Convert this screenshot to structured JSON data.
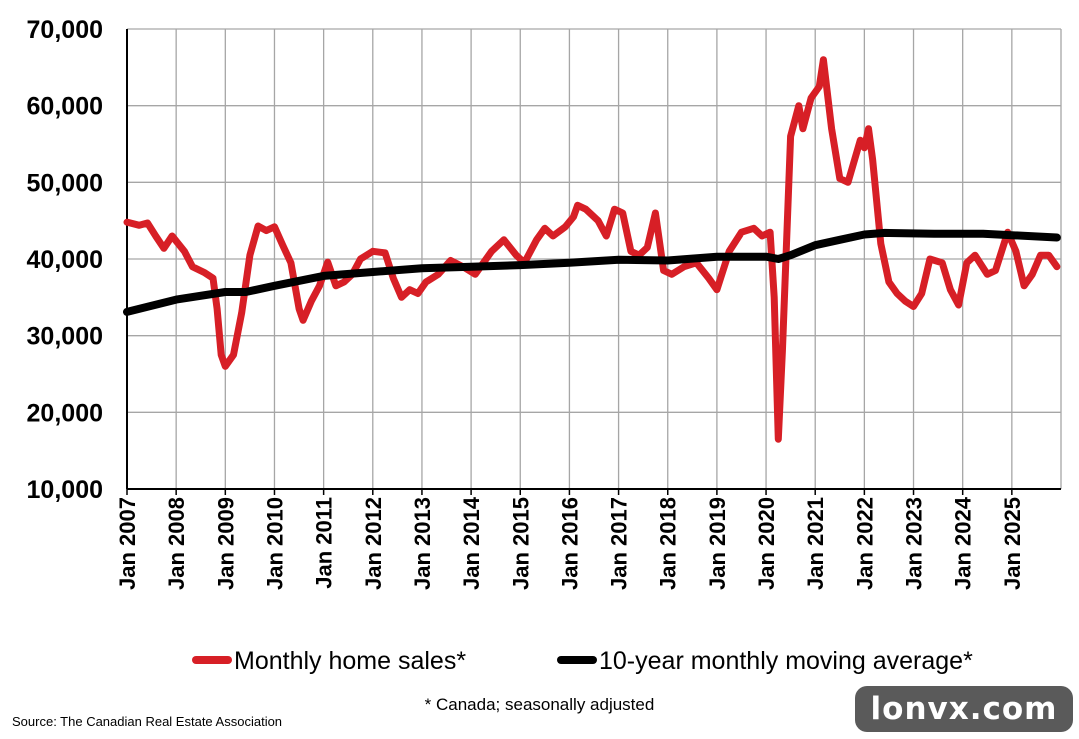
{
  "chart_data": {
    "type": "line",
    "title": "",
    "xlabel": "",
    "ylabel": "",
    "ylim": [
      10000,
      70000
    ],
    "yticks": [
      "10,000",
      "20,000",
      "30,000",
      "40,000",
      "50,000",
      "60,000",
      "70,000"
    ],
    "xticks": [
      "Jan 2007",
      "Jan 2008",
      "Jan 2009",
      "Jan 2010",
      "Jan 2011",
      "Jan 2012",
      "Jan 2013",
      "Jan 2014",
      "Jan 2015",
      "Jan 2016",
      "Jan 2017",
      "Jan 2018",
      "Jan 2019",
      "Jan 2020",
      "Jan 2021",
      "Jan 2022",
      "Jan 2023",
      "Jan 2024",
      "Jan 2025"
    ],
    "x_range": [
      "2007-01",
      "2025-12"
    ],
    "grid": true,
    "legend_position": "bottom",
    "series": [
      {
        "name": "Monthly home sales*",
        "color": "#d71f26",
        "points": [
          [
            "2007-01",
            44800
          ],
          [
            "2007-04",
            44400
          ],
          [
            "2007-06",
            44700
          ],
          [
            "2007-08",
            43000
          ],
          [
            "2007-10",
            41400
          ],
          [
            "2007-12",
            43000
          ],
          [
            "2008-03",
            41000
          ],
          [
            "2008-05",
            39000
          ],
          [
            "2008-08",
            38200
          ],
          [
            "2008-10",
            37500
          ],
          [
            "2008-11",
            33500
          ],
          [
            "2008-12",
            27500
          ],
          [
            "2009-01",
            26000
          ],
          [
            "2009-03",
            27500
          ],
          [
            "2009-05",
            33000
          ],
          [
            "2009-07",
            40500
          ],
          [
            "2009-09",
            44300
          ],
          [
            "2009-11",
            43700
          ],
          [
            "2010-01",
            44200
          ],
          [
            "2010-03",
            41800
          ],
          [
            "2010-05",
            39500
          ],
          [
            "2010-07",
            33500
          ],
          [
            "2010-08",
            32000
          ],
          [
            "2010-10",
            34500
          ],
          [
            "2010-12",
            36500
          ],
          [
            "2011-02",
            39600
          ],
          [
            "2011-04",
            36500
          ],
          [
            "2011-06",
            37000
          ],
          [
            "2011-08",
            38000
          ],
          [
            "2011-10",
            40000
          ],
          [
            "2012-01",
            41000
          ],
          [
            "2012-04",
            40800
          ],
          [
            "2012-06",
            37500
          ],
          [
            "2012-08",
            35000
          ],
          [
            "2012-10",
            36000
          ],
          [
            "2012-12",
            35500
          ],
          [
            "2013-02",
            37000
          ],
          [
            "2013-05",
            38000
          ],
          [
            "2013-08",
            39800
          ],
          [
            "2013-11",
            39000
          ],
          [
            "2014-02",
            38000
          ],
          [
            "2014-04",
            39500
          ],
          [
            "2014-06",
            41000
          ],
          [
            "2014-09",
            42500
          ],
          [
            "2014-12",
            40500
          ],
          [
            "2015-02",
            39500
          ],
          [
            "2015-05",
            42500
          ],
          [
            "2015-07",
            44000
          ],
          [
            "2015-09",
            43000
          ],
          [
            "2015-12",
            44200
          ],
          [
            "2016-02",
            45500
          ],
          [
            "2016-03",
            47000
          ],
          [
            "2016-05",
            46500
          ],
          [
            "2016-08",
            45000
          ],
          [
            "2016-10",
            43000
          ],
          [
            "2016-12",
            46500
          ],
          [
            "2017-02",
            46000
          ],
          [
            "2017-04",
            41000
          ],
          [
            "2017-06",
            40500
          ],
          [
            "2017-08",
            41500
          ],
          [
            "2017-10",
            46000
          ],
          [
            "2017-12",
            38500
          ],
          [
            "2018-02",
            38000
          ],
          [
            "2018-05",
            39000
          ],
          [
            "2018-08",
            39500
          ],
          [
            "2018-11",
            37500
          ],
          [
            "2019-01",
            36000
          ],
          [
            "2019-04",
            41000
          ],
          [
            "2019-07",
            43500
          ],
          [
            "2019-10",
            44000
          ],
          [
            "2019-12",
            43000
          ],
          [
            "2020-02",
            43500
          ],
          [
            "2020-03",
            35000
          ],
          [
            "2020-04",
            16500
          ],
          [
            "2020-05",
            28000
          ],
          [
            "2020-07",
            56000
          ],
          [
            "2020-09",
            60000
          ],
          [
            "2020-10",
            57000
          ],
          [
            "2020-12",
            61000
          ],
          [
            "2021-02",
            62500
          ],
          [
            "2021-03",
            66000
          ],
          [
            "2021-05",
            57000
          ],
          [
            "2021-07",
            50500
          ],
          [
            "2021-09",
            50000
          ],
          [
            "2021-12",
            55500
          ],
          [
            "2022-01",
            54500
          ],
          [
            "2022-02",
            57000
          ],
          [
            "2022-03",
            53000
          ],
          [
            "2022-05",
            42000
          ],
          [
            "2022-07",
            37000
          ],
          [
            "2022-09",
            35500
          ],
          [
            "2022-11",
            34500
          ],
          [
            "2023-01",
            33800
          ],
          [
            "2023-03",
            35500
          ],
          [
            "2023-05",
            40000
          ],
          [
            "2023-08",
            39500
          ],
          [
            "2023-10",
            36000
          ],
          [
            "2023-12",
            34000
          ],
          [
            "2024-02",
            39500
          ],
          [
            "2024-04",
            40500
          ],
          [
            "2024-07",
            38000
          ],
          [
            "2024-09",
            38500
          ],
          [
            "2024-12",
            43500
          ],
          [
            "2025-02",
            41000
          ],
          [
            "2025-04",
            36500
          ],
          [
            "2025-06",
            38000
          ],
          [
            "2025-08",
            40500
          ],
          [
            "2025-10",
            40500
          ],
          [
            "2025-12",
            39000
          ]
        ]
      },
      {
        "name": "10-year monthly moving average*",
        "color": "#000000",
        "points": [
          [
            "2007-01",
            33100
          ],
          [
            "2008-01",
            34700
          ],
          [
            "2009-01",
            35700
          ],
          [
            "2009-06",
            35700
          ],
          [
            "2010-01",
            36500
          ],
          [
            "2011-01",
            37800
          ],
          [
            "2012-01",
            38300
          ],
          [
            "2013-01",
            38800
          ],
          [
            "2014-01",
            39000
          ],
          [
            "2015-01",
            39200
          ],
          [
            "2016-01",
            39500
          ],
          [
            "2017-01",
            39900
          ],
          [
            "2018-01",
            39800
          ],
          [
            "2019-01",
            40300
          ],
          [
            "2020-01",
            40300
          ],
          [
            "2020-04",
            40000
          ],
          [
            "2020-07",
            40500
          ],
          [
            "2021-01",
            41800
          ],
          [
            "2021-07",
            42500
          ],
          [
            "2022-01",
            43200
          ],
          [
            "2022-06",
            43400
          ],
          [
            "2023-06",
            43300
          ],
          [
            "2024-06",
            43300
          ],
          [
            "2025-01",
            43100
          ],
          [
            "2025-12",
            42800
          ]
        ]
      }
    ],
    "footnote": "* Canada; seasonally adjusted"
  },
  "source": "Source: The Canadian Real Estate Association",
  "watermark": "lonvx.com"
}
